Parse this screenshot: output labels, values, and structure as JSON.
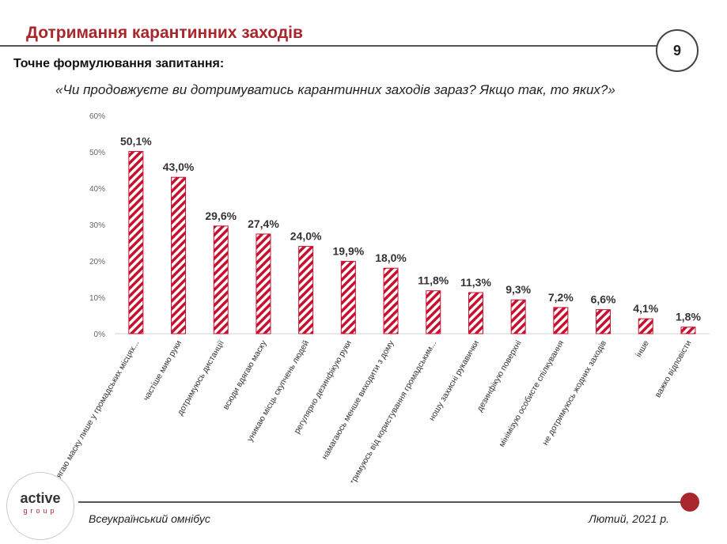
{
  "header": {
    "title": "Дотримання карантинних заходів",
    "page_number": "9"
  },
  "question": {
    "label": "Точне формулювання запитання:",
    "text": "«Чи продовжуєте ви дотримуватись карантинних заходів зараз? Якщо так, то яких?»"
  },
  "chart_data": {
    "type": "bar",
    "categories": [
      "вдягаю маску лише у громадських місцях...",
      "частіше мию руки",
      "дотримуюсь дистанції",
      "всюди вдягаю маску",
      "уникаю місць скупчень людей",
      "регулярно дезинфікую руки",
      "намагаюсь менше виходити з дому",
      "утримуюсь від користування громадським...",
      "ношу захисні рукавички",
      "дезинфікую поверхні",
      "мінімізую особисте спілкування",
      "не дотримуюсь жодних заходів",
      "інше",
      "важко відповісти"
    ],
    "values": [
      50.1,
      43.0,
      29.6,
      27.4,
      24.0,
      19.9,
      18.0,
      11.8,
      11.3,
      9.3,
      7.2,
      6.6,
      4.1,
      1.8
    ],
    "value_labels": [
      "50,1%",
      "43,0%",
      "29,6%",
      "27,4%",
      "24,0%",
      "19,9%",
      "18,0%",
      "11,8%",
      "11,3%",
      "9,3%",
      "7,2%",
      "6,6%",
      "4,1%",
      "1,8%"
    ],
    "yticks": [
      0,
      10,
      20,
      30,
      40,
      50,
      60
    ],
    "ytick_labels": [
      "0%",
      "10%",
      "20%",
      "30%",
      "40%",
      "50%",
      "60%"
    ],
    "ylim": [
      0,
      60
    ],
    "grid": false,
    "bar_color": "#c8102e",
    "bar_fill": "diagonal-stripes"
  },
  "footer": {
    "logo_main": "active",
    "logo_sub": "group",
    "left": "Всеукраїнський омнібус",
    "right": "Лютий, 2021 р."
  },
  "colors": {
    "accent": "#a8262c"
  }
}
